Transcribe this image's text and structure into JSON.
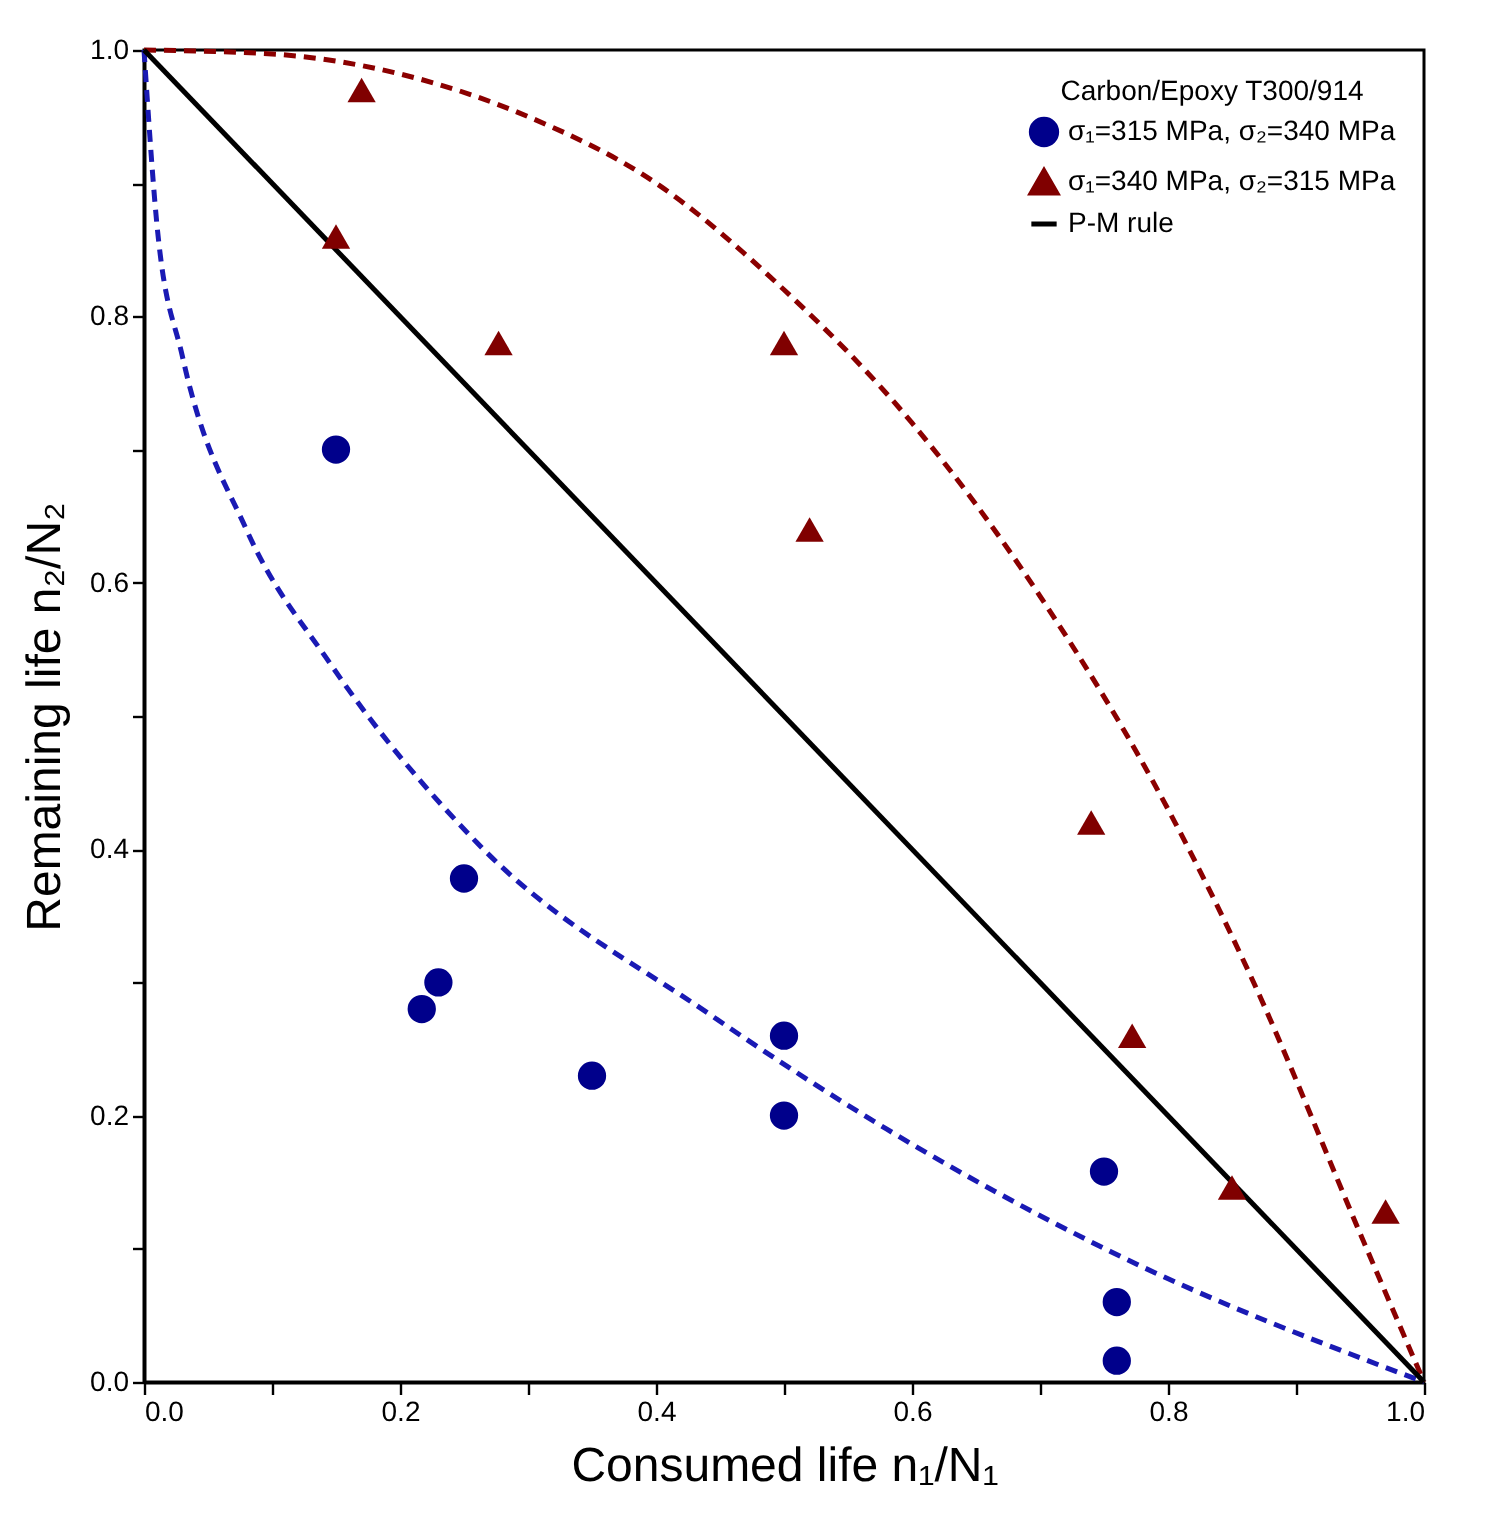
{
  "chart_data": {
    "type": "scatter",
    "xlabel": "Consumed life n₁/N₁",
    "ylabel": "Remaining life n₂/N₂",
    "legend_title": "Carbon/Epoxy T300/914",
    "legend": "top right",
    "grid": false,
    "xlim": [
      0,
      1
    ],
    "ylim": [
      0,
      1
    ],
    "xticks": [
      {
        "value": 0,
        "label": "0.0"
      },
      {
        "value": 0.1,
        "label": null
      },
      {
        "value": 0.2,
        "label": "0.2"
      },
      {
        "value": 0.3,
        "label": null
      },
      {
        "value": 0.4,
        "label": "0.4"
      },
      {
        "value": 0.5,
        "label": null
      },
      {
        "value": 0.6,
        "label": "0.6"
      },
      {
        "value": 0.7,
        "label": null
      },
      {
        "value": 0.8,
        "label": "0.8"
      },
      {
        "value": 0.9,
        "label": null
      },
      {
        "value": 1,
        "label": "1.0"
      }
    ],
    "yticks": [
      {
        "value": 0,
        "label": "0.0"
      },
      {
        "value": 0.1,
        "label": null
      },
      {
        "value": 0.2,
        "label": "0.2"
      },
      {
        "value": 0.3,
        "label": null
      },
      {
        "value": 0.4,
        "label": "0.4"
      },
      {
        "value": 0.5,
        "label": null
      },
      {
        "value": 0.6,
        "label": "0.6"
      },
      {
        "value": 0.7,
        "label": null
      },
      {
        "value": 0.8,
        "label": "0.8"
      },
      {
        "value": 0.9,
        "label": null
      },
      {
        "value": 1,
        "label": "1.0"
      }
    ],
    "series": [
      {
        "type": "line",
        "line_style": "dashed",
        "marker": "none",
        "color": "#1a1ab4",
        "x": [
          0,
          0.01,
          0.03,
          0.08,
          0.145,
          0.26,
          0.442,
          0.58,
          0.755,
          1
        ],
        "values": [
          1,
          0.87,
          0.77,
          0.64,
          0.54,
          0.405,
          0.276,
          0.19,
          0.098,
          0
        ]
      },
      {
        "type": "line",
        "line_style": "dashed",
        "marker": "none",
        "color": "#8b0000",
        "x": [
          0,
          0.1,
          0.2,
          0.3,
          0.4,
          0.5,
          0.6,
          0.7,
          0.8,
          0.864,
          0.953,
          1
        ],
        "values": [
          1,
          0.997,
          0.982,
          0.95,
          0.9,
          0.82,
          0.72,
          0.59,
          0.43,
          0.306,
          0.105,
          0
        ]
      },
      {
        "name": "σ₁=315 MPa, σ₂=340 MPa",
        "type": "scatter",
        "marker": "circle",
        "color": "#00008b",
        "x": [
          0.15,
          0.217,
          0.23,
          0.25,
          0.35,
          0.5,
          0.5,
          0.75,
          0.76,
          0.76
        ],
        "values": [
          0.7,
          0.28,
          0.3,
          0.378,
          0.23,
          0.26,
          0.2,
          0.158,
          0.06,
          0.016
        ]
      },
      {
        "name": "σ₁=340 MPa, σ₂=315 MPa",
        "type": "scatter",
        "marker": "triangle",
        "color": "#800000",
        "x": [
          0.17,
          0.15,
          0.277,
          0.5,
          0.52,
          0.74,
          0.772,
          0.85,
          0.97
        ],
        "values": [
          0.97,
          0.86,
          0.78,
          0.78,
          0.64,
          0.42,
          0.26,
          0.146,
          0.128
        ]
      },
      {
        "name": "P-M rule",
        "type": "line",
        "line_style": "solid",
        "marker": "none",
        "color": "#000000",
        "x": [
          0,
          1
        ],
        "values": [
          1,
          0
        ]
      }
    ]
  }
}
